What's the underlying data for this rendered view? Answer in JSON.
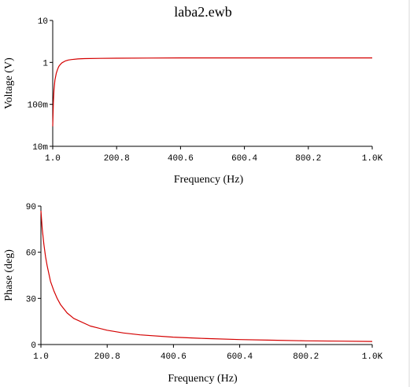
{
  "window": {
    "title": "laba2.ewb"
  },
  "colors": {
    "curve": "#d40000",
    "axis": "#000000",
    "background": "#ffffff",
    "frame_edge": "#d9d9d9"
  },
  "chart_data": [
    {
      "type": "line",
      "title": "laba2.ewb",
      "xlabel": "Frequency (Hz)",
      "ylabel": "Voltage (V)",
      "x_scale": "linear",
      "y_scale": "log",
      "xlim": [
        1.0,
        1000
      ],
      "ylim": [
        0.01,
        10
      ],
      "x_ticks": [
        1.0,
        200.8,
        400.6,
        600.4,
        800.2,
        1000
      ],
      "x_tick_labels": [
        "1.0",
        "200.8",
        "400.6",
        "600.4",
        "800.2",
        "1.0K"
      ],
      "y_ticks": [
        0.01,
        0.1,
        1,
        10
      ],
      "y_tick_labels": [
        "10m",
        "100m",
        "1",
        "10"
      ],
      "grid": false,
      "series": [
        {
          "x": [
            1,
            3,
            5,
            8,
            12,
            16,
            20,
            25,
            30,
            40,
            50,
            60,
            80,
            100,
            150,
            200,
            300,
            400,
            600,
            800,
            1000
          ],
          "y": [
            0.03,
            0.11,
            0.22,
            0.38,
            0.55,
            0.68,
            0.8,
            0.9,
            0.98,
            1.08,
            1.14,
            1.17,
            1.21,
            1.23,
            1.25,
            1.26,
            1.27,
            1.28,
            1.28,
            1.28,
            1.28
          ]
        }
      ]
    },
    {
      "type": "line",
      "xlabel": "Frequency (Hz)",
      "ylabel": "Phase (deg)",
      "x_scale": "linear",
      "y_scale": "linear",
      "xlim": [
        1.0,
        1000
      ],
      "ylim": [
        0,
        90
      ],
      "x_ticks": [
        1.0,
        200.8,
        400.6,
        600.4,
        800.2,
        1000
      ],
      "x_tick_labels": [
        "1.0",
        "200.8",
        "400.6",
        "600.4",
        "800.2",
        "1.0K"
      ],
      "y_ticks": [
        0,
        30,
        60,
        90
      ],
      "y_tick_labels": [
        "0",
        "30",
        "60",
        "90"
      ],
      "grid": false,
      "series": [
        {
          "x": [
            1,
            5,
            10,
            15,
            20,
            30,
            40,
            50,
            60,
            80,
            100,
            150,
            200,
            250,
            300,
            400,
            500,
            600,
            700,
            800,
            900,
            1000
          ],
          "y": [
            87,
            75,
            65,
            57,
            51,
            41,
            35,
            30,
            26,
            20.5,
            17,
            12,
            9.3,
            7.5,
            6.3,
            4.8,
            3.9,
            3.2,
            2.8,
            2.4,
            2.2,
            2.0
          ]
        }
      ]
    }
  ]
}
